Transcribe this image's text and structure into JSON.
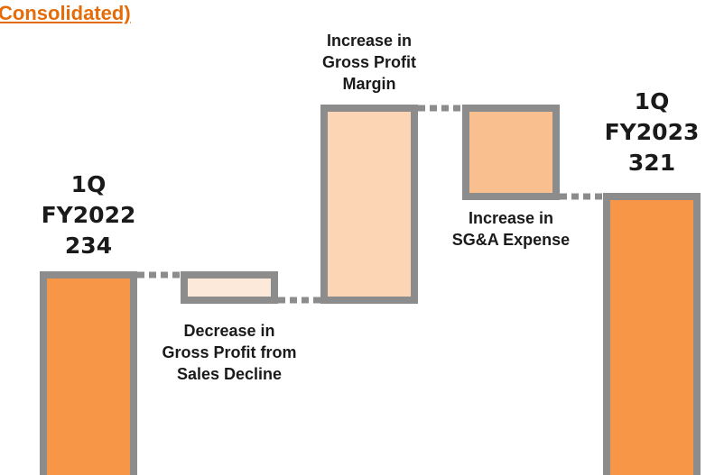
{
  "title": "Consolidated)",
  "chart_data": {
    "type": "waterfall",
    "categories": [
      "1Q FY2022",
      "Decrease in Gross Profit from Sales Decline",
      "Increase in Gross Profit Margin",
      "Increase in SG&A Expense",
      "1Q FY2023"
    ],
    "measure": [
      "absolute",
      "relative",
      "relative",
      "relative",
      "absolute"
    ],
    "values": [
      234,
      -28,
      213,
      -98,
      321
    ],
    "colors": [
      "#f79646",
      "#fde9d9",
      "#fcd5b4",
      "#fabf8f",
      "#f79646"
    ],
    "border_color": "#8c8c8c"
  }
}
